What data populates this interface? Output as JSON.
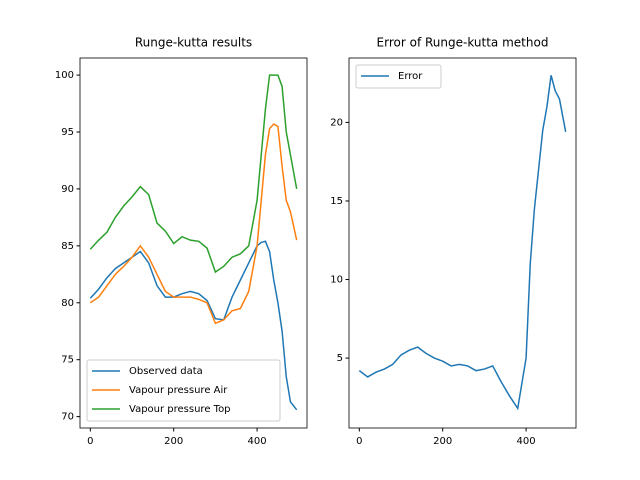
{
  "chart_data": [
    {
      "type": "line",
      "title": "Runge-kutta results",
      "x": [
        0,
        20,
        40,
        60,
        80,
        100,
        120,
        140,
        160,
        180,
        200,
        220,
        240,
        260,
        280,
        300,
        320,
        340,
        360,
        380,
        400,
        410,
        420,
        430,
        440,
        450,
        460,
        470,
        480,
        495
      ],
      "series": [
        {
          "name": "Observed data",
          "color": "#1f77b4",
          "values": [
            80.4,
            81.2,
            82.2,
            83,
            83.5,
            84,
            84.5,
            83.5,
            81.5,
            80.5,
            80.5,
            80.8,
            81,
            80.8,
            80.2,
            78.6,
            78.5,
            80.5,
            82,
            83.5,
            85,
            85.3,
            85.4,
            84.5,
            82,
            80,
            77.5,
            73.5,
            71.3,
            70.6
          ]
        },
        {
          "name": "Vapour pressure Air",
          "color": "#ff7f0e",
          "values": [
            80,
            80.5,
            81.5,
            82.5,
            83.2,
            84,
            85,
            84,
            82.5,
            81,
            80.5,
            80.5,
            80.5,
            80.3,
            80,
            78.2,
            78.5,
            79.3,
            79.5,
            81,
            85,
            89,
            93,
            95.3,
            95.7,
            95.5,
            92,
            89,
            88,
            85.5
          ]
        },
        {
          "name": "Vapour pressure Top",
          "color": "#2ca02c",
          "values": [
            84.7,
            85.5,
            86.2,
            87.5,
            88.5,
            89.3,
            90.2,
            89.5,
            87,
            86.3,
            85.2,
            85.8,
            85.5,
            85.4,
            84.8,
            82.7,
            83.2,
            84,
            84.3,
            85,
            89,
            93,
            97,
            100,
            100,
            100,
            99,
            95,
            93,
            90
          ]
        }
      ],
      "xlim": [
        -24.75,
        519.75
      ],
      "ylim": [
        69.0,
        101.5
      ],
      "xticks": [
        0,
        200,
        400
      ],
      "yticks": [
        70,
        75,
        80,
        85,
        90,
        95,
        100
      ],
      "legend": "lower left"
    },
    {
      "type": "line",
      "title": "Error of Runge-kutta method",
      "x": [
        0,
        20,
        40,
        60,
        80,
        100,
        120,
        140,
        160,
        180,
        200,
        220,
        240,
        260,
        280,
        300,
        320,
        340,
        360,
        380,
        400,
        410,
        420,
        430,
        440,
        450,
        460,
        470,
        480,
        495
      ],
      "series": [
        {
          "name": "Error",
          "color": "#1f77b4",
          "values": [
            4.2,
            3.8,
            4.1,
            4.3,
            4.6,
            5.2,
            5.5,
            5.7,
            5.3,
            5,
            4.8,
            4.5,
            4.6,
            4.5,
            4.2,
            4.3,
            4.5,
            3.5,
            2.6,
            1.8,
            5,
            11,
            14.5,
            17,
            19.5,
            21,
            23,
            22,
            21.5,
            19.4
          ]
        }
      ],
      "xlim": [
        -24.75,
        519.75
      ],
      "ylim": [
        0.55,
        24.1
      ],
      "xticks": [
        0,
        200,
        400
      ],
      "yticks": [
        5,
        10,
        15,
        20
      ],
      "legend": "upper left"
    }
  ]
}
